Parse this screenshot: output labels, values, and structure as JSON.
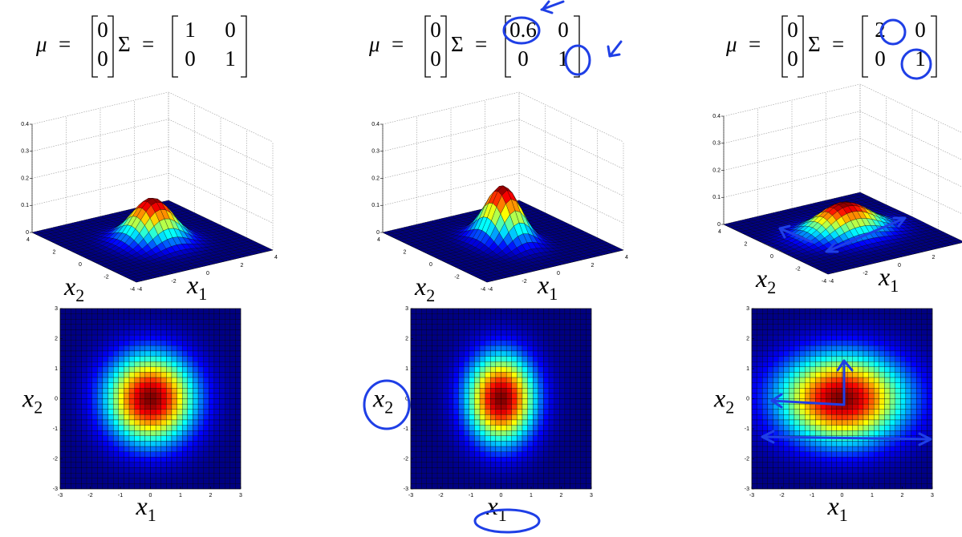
{
  "equation": {
    "mu": "μ",
    "equals": "=",
    "sigma": "Σ"
  },
  "panels": [
    {
      "mu": [
        0,
        0
      ],
      "sigma": [
        [
          1,
          0
        ],
        [
          0,
          1
        ]
      ]
    },
    {
      "mu": [
        0,
        0
      ],
      "sigma": [
        [
          0.6,
          0
        ],
        [
          0,
          1
        ]
      ]
    },
    {
      "mu": [
        0,
        0
      ],
      "sigma": [
        [
          2,
          0
        ],
        [
          0,
          1
        ]
      ]
    }
  ],
  "surface": {
    "zticks": [
      0,
      0.1,
      0.2,
      0.3,
      0.4
    ],
    "x1ticks": [
      -4,
      -2,
      0,
      2,
      4
    ],
    "x2ticks": [
      -4,
      -2,
      0,
      2,
      4
    ]
  },
  "heatmap": {
    "xticks": [
      -3,
      -2,
      -1,
      0,
      1,
      2,
      3
    ],
    "yticks": [
      -3,
      -2,
      -1,
      0,
      1,
      2,
      3
    ]
  },
  "labels": {
    "x1": {
      "var": "x",
      "sub": "1"
    },
    "x2": {
      "var": "x",
      "sub": "2"
    }
  }
}
